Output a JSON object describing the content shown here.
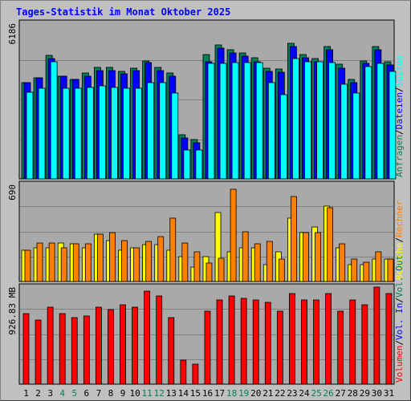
{
  "title": "Tages-Statistik im Monat Oktober 2025",
  "colors": {
    "background": "#C0C0C0",
    "panel": "#A9A9A9",
    "grid": "#808080",
    "anfragen": "#00805C",
    "dateien": "#0000FF",
    "seiten": "#00FFFF",
    "besuche": "#FFFF00",
    "rechner": "#FF8000",
    "volumen": "#FF0000"
  },
  "chart_data": [
    {
      "type": "bar",
      "ylabel": "6186",
      "legend": [
        {
          "text": "Anfragen",
          "color": "#00805C"
        },
        {
          "text": "/",
          "color": "#000000"
        },
        {
          "text": "Dateien",
          "color": "#0000FF"
        },
        {
          "text": "/",
          "color": "#000000"
        },
        {
          "text": "Seiten",
          "color": "#00FFFF"
        }
      ],
      "ylim": [
        0,
        6186
      ],
      "categories": [
        "1",
        "2",
        "3",
        "4",
        "5",
        "6",
        "7",
        "8",
        "9",
        "10",
        "11",
        "12",
        "13",
        "14",
        "15",
        "16",
        "17",
        "18",
        "19",
        "20",
        "21",
        "22",
        "23",
        "24",
        "25",
        "26",
        "27",
        "28",
        "29",
        "30",
        "31"
      ],
      "series": [
        {
          "name": "Anfragen",
          "values": [
            3815,
            4029,
            4918,
            4084,
            3950,
            4218,
            4433,
            4433,
            4285,
            4391,
            4700,
            4433,
            4218,
            1742,
            1555,
            4945,
            5318,
            5143,
            5009,
            4800,
            4390,
            4362,
            5398,
            4945,
            4780,
            5250,
            4549,
            3952,
            4700,
            5265,
            4660
          ]
        },
        {
          "name": "Dateien",
          "values": [
            3815,
            4029,
            4784,
            4084,
            3950,
            4084,
            4299,
            4299,
            4165,
            4311,
            4620,
            4299,
            4084,
            1622,
            1422,
            4660,
            5198,
            5009,
            4875,
            4660,
            4270,
            4245,
            5265,
            4811,
            4660,
            5130,
            4411,
            3839,
            4580,
            5130,
            4526
          ]
        },
        {
          "name": "Seiten",
          "values": [
            3452,
            3602,
            4660,
            3591,
            3591,
            3632,
            3696,
            3640,
            3602,
            3602,
            3828,
            3828,
            3426,
            1141,
            1141,
            4577,
            4600,
            4626,
            4626,
            4626,
            3828,
            3344,
            4793,
            4655,
            4655,
            4626,
            3766,
            3426,
            4465,
            4577,
            4285
          ]
        }
      ]
    },
    {
      "type": "bar",
      "ylabel": "690",
      "legend": [
        {
          "text": "Besuche",
          "color": "#FFFF00"
        },
        {
          "text": "/",
          "color": "#000000"
        },
        {
          "text": "Rechner",
          "color": "#FF8000"
        }
      ],
      "ylim": [
        0,
        690
      ],
      "categories": [
        "1",
        "2",
        "3",
        "4",
        "5",
        "6",
        "7",
        "8",
        "9",
        "10",
        "11",
        "12",
        "13",
        "14",
        "15",
        "16",
        "17",
        "18",
        "19",
        "20",
        "21",
        "22",
        "23",
        "24",
        "25",
        "26",
        "27",
        "28",
        "29",
        "30",
        "31"
      ],
      "series": [
        {
          "name": "Besuche",
          "values": [
            220,
            241,
            241,
            272,
            268,
            241,
            339,
            289,
            220,
            241,
            262,
            262,
            225,
            178,
            100,
            178,
            490,
            212,
            241,
            241,
            121,
            212,
            451,
            349,
            387,
            536,
            241,
            121,
            121,
            158,
            158
          ]
        },
        {
          "name": "Rechner",
          "values": [
            220,
            274,
            274,
            241,
            268,
            268,
            339,
            349,
            289,
            241,
            287,
            319,
            449,
            274,
            213,
            129,
            165,
            655,
            354,
            267,
            283,
            158,
            602,
            349,
            349,
            522,
            268,
            158,
            138,
            212,
            158
          ]
        }
      ]
    },
    {
      "type": "bar",
      "ylabel": "926.83 MB",
      "legend": [
        {
          "text": "Volumen",
          "color": "#FF0000"
        },
        {
          "text": "/",
          "color": "#000000"
        },
        {
          "text": "Vol. In",
          "color": "#0000FF"
        },
        {
          "text": "/",
          "color": "#000000"
        },
        {
          "text": "Vol. Out",
          "color": "#00805C"
        }
      ],
      "ylim": [
        0,
        926.83
      ],
      "categories": [
        "1",
        "2",
        "3",
        "4",
        "5",
        "6",
        "7",
        "8",
        "9",
        "10",
        "11",
        "12",
        "13",
        "14",
        "15",
        "16",
        "17",
        "18",
        "19",
        "20",
        "21",
        "22",
        "23",
        "24",
        "25",
        "26",
        "27",
        "28",
        "29",
        "30",
        "31"
      ],
      "series": [
        {
          "name": "Volumen",
          "values": [
            674,
            611,
            737,
            674,
            632,
            653,
            737,
            716,
            758,
            737,
            885,
            843,
            632,
            232,
            190,
            695,
            801,
            843,
            822,
            801,
            779,
            695,
            864,
            801,
            801,
            864,
            695,
            801,
            758,
            927,
            864
          ]
        }
      ]
    }
  ],
  "weekend_days": [
    "4",
    "5",
    "11",
    "12",
    "18",
    "19",
    "25",
    "26"
  ]
}
